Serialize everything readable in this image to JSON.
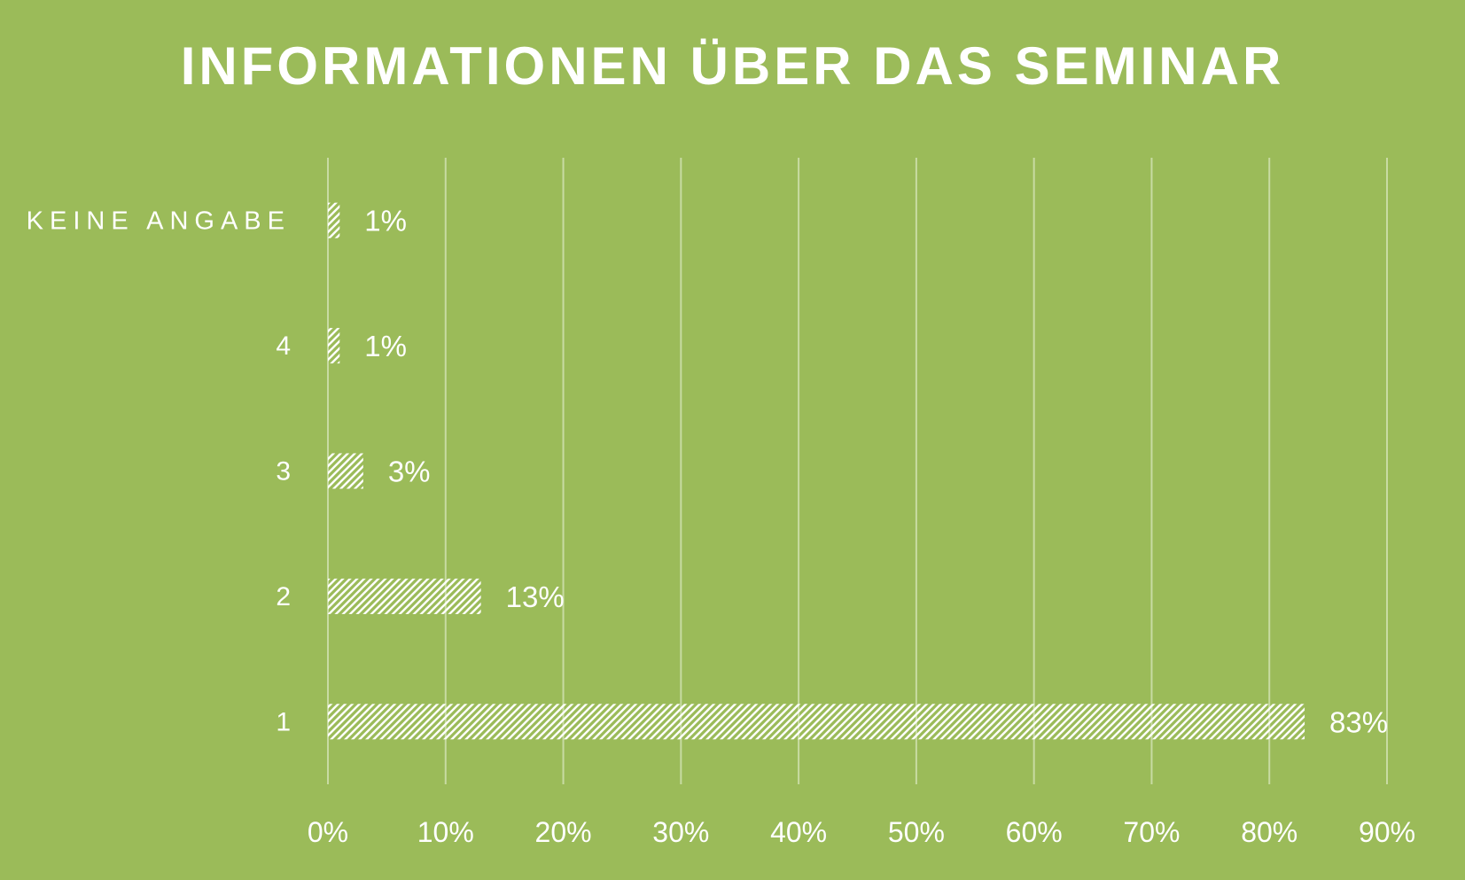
{
  "chart_data": {
    "type": "bar",
    "orientation": "horizontal",
    "title": "INFORMATIONEN ÜBER DAS SEMINAR",
    "categories": [
      "KEINE ANGABE",
      "4",
      "3",
      "2",
      "1"
    ],
    "values": [
      1,
      1,
      3,
      13,
      83
    ],
    "value_labels": [
      "1%",
      "1%",
      "3%",
      "13%",
      "83%"
    ],
    "x_ticks": [
      "0%",
      "10%",
      "20%",
      "30%",
      "40%",
      "50%",
      "60%",
      "70%",
      "80%",
      "90%"
    ],
    "xlim": [
      0,
      90
    ],
    "xlabel": "",
    "ylabel": "",
    "grid": true,
    "legend": "none"
  },
  "colors": {
    "background": "#9bbb59",
    "bar_pattern": "#ffffff",
    "gridline": "#c8dba3",
    "text": "#ffffff"
  }
}
